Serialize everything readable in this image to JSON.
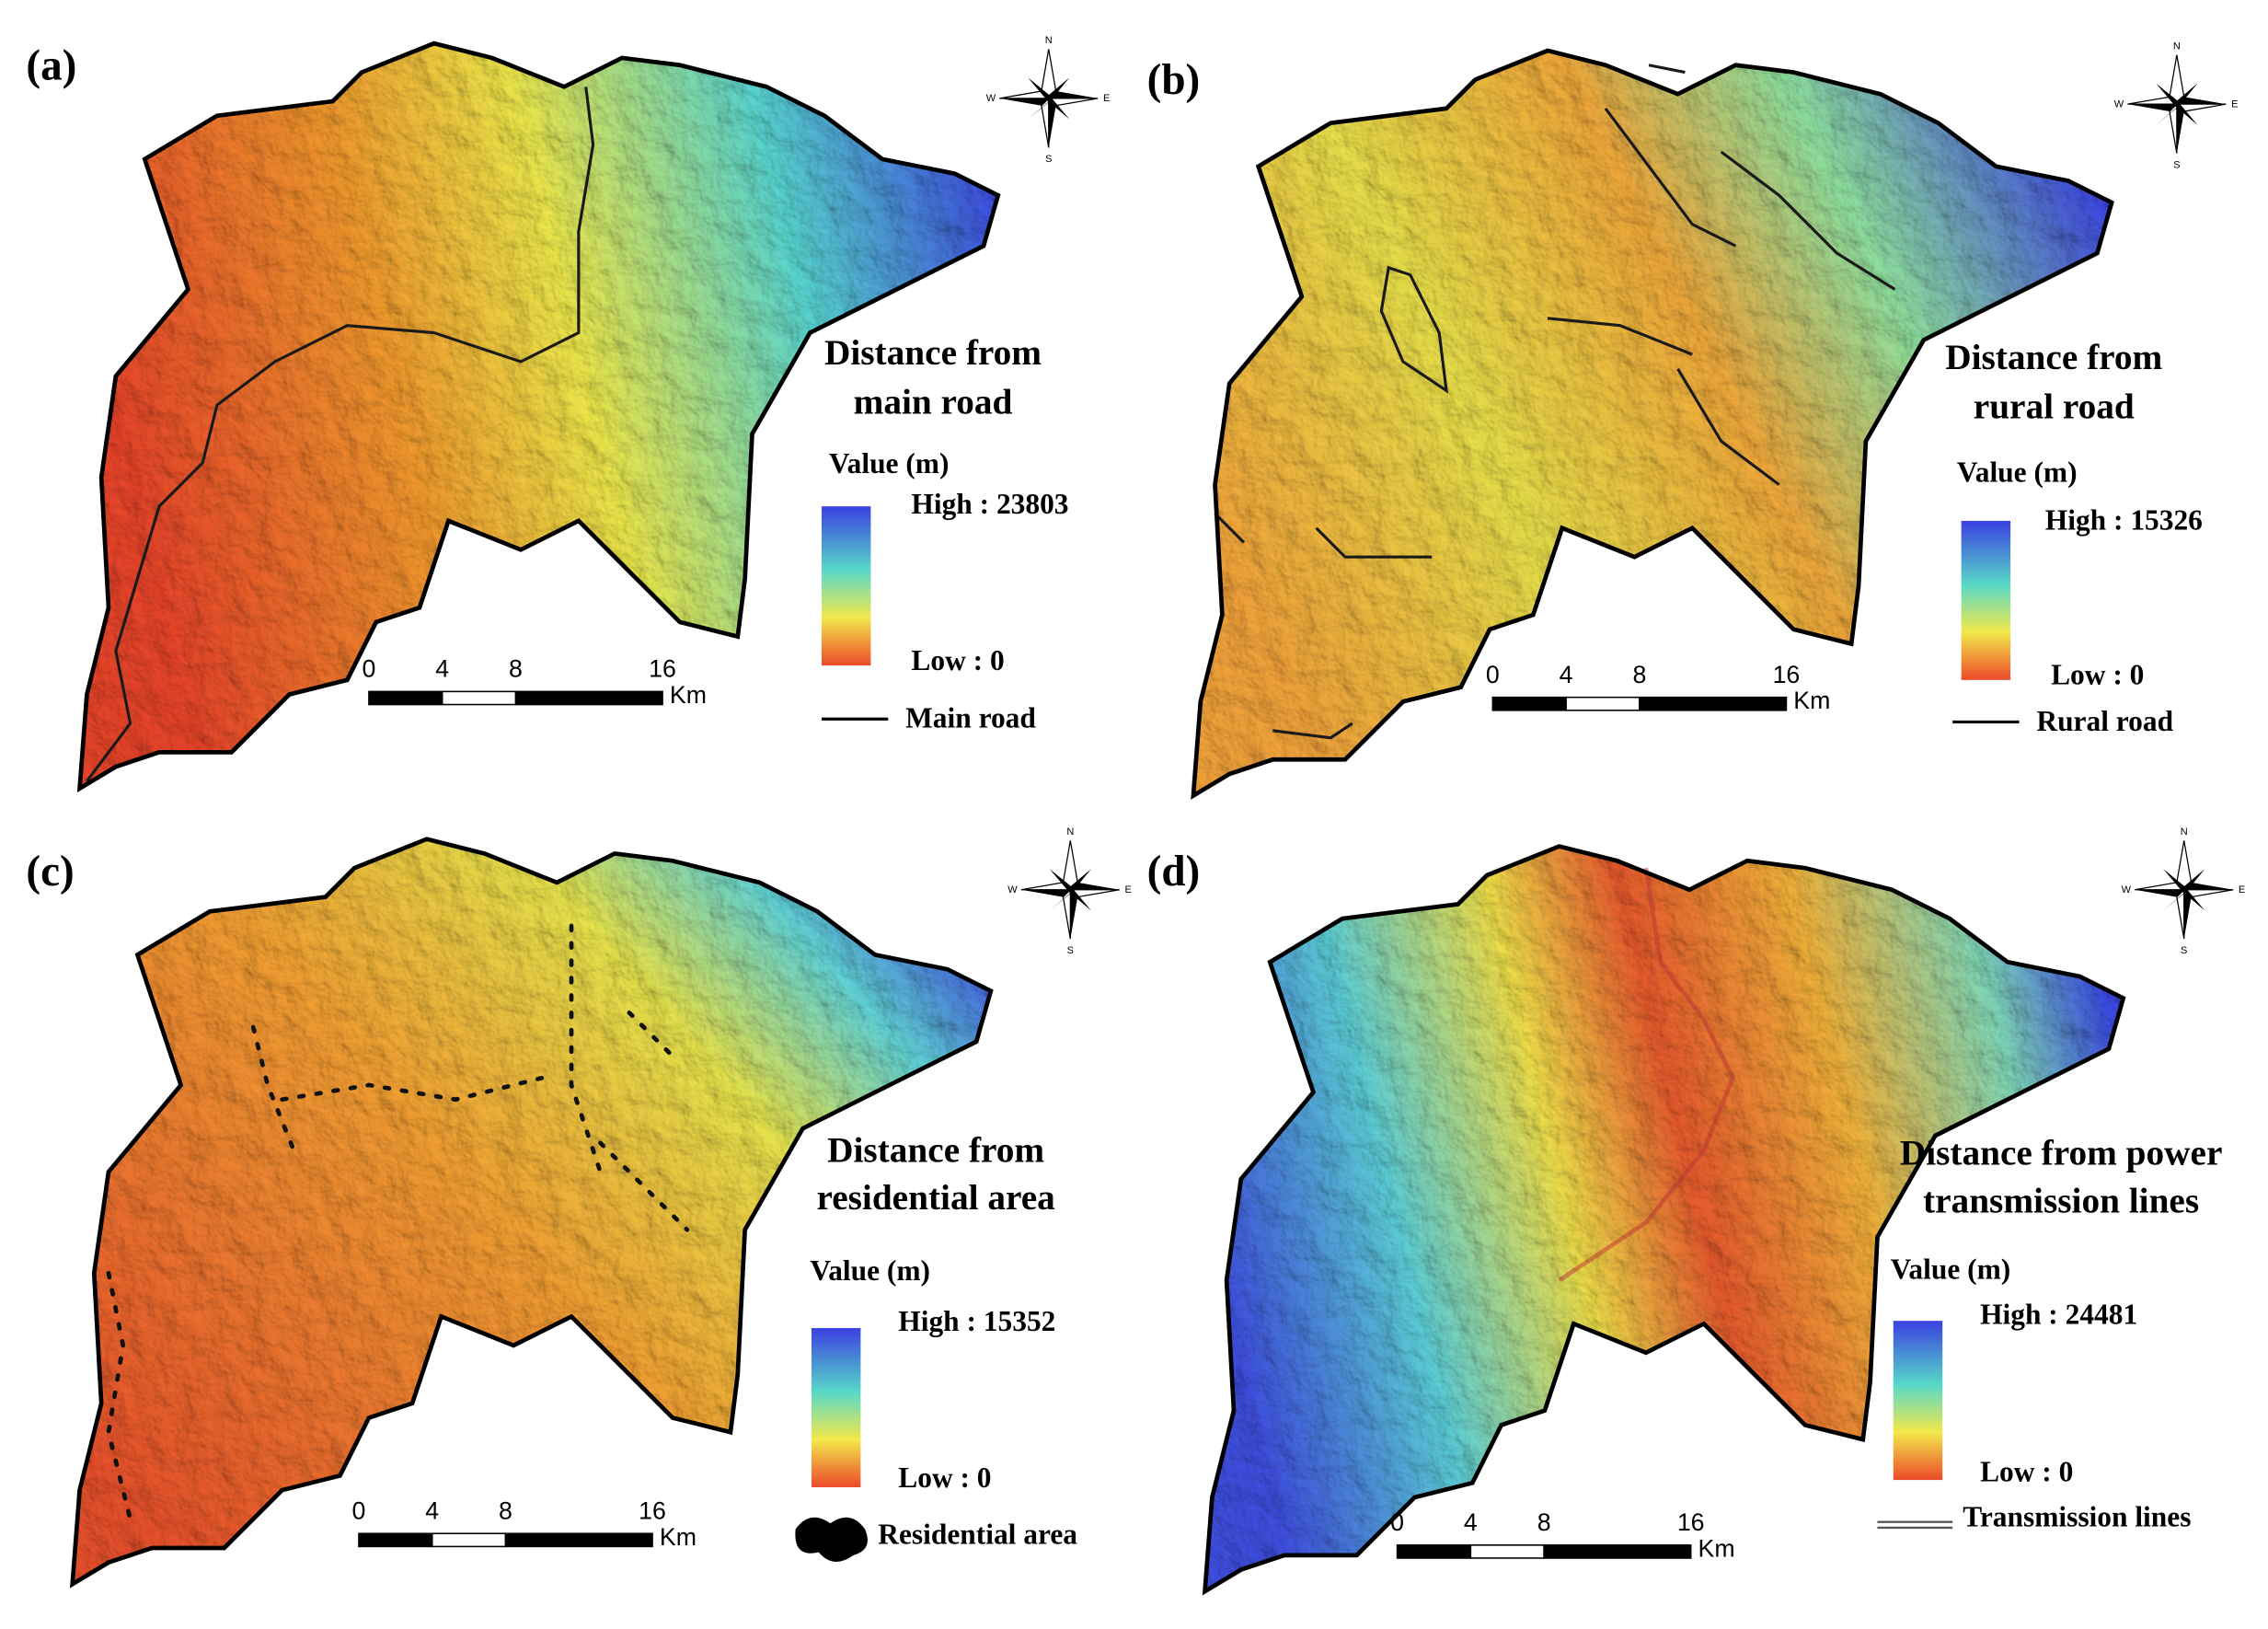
{
  "panels": [
    {
      "label": "(a)",
      "title": [
        "Distance from",
        "main road"
      ],
      "legend_title": "Value (m)",
      "high": "High : 23803",
      "low": "Low : 0",
      "scale_ticks": [
        0,
        4,
        8,
        16
      ],
      "scale_unit": "Km",
      "feature": "Main road",
      "compass": [
        "N",
        "S",
        "W",
        "E"
      ]
    },
    {
      "label": "(b)",
      "title": [
        "Distance from",
        "rural road"
      ],
      "legend_title": "Value (m)",
      "high": "High : 15326",
      "low": "Low : 0",
      "scale_ticks": [
        0,
        4,
        8,
        16
      ],
      "scale_unit": "Km",
      "feature": "Rural road",
      "compass": [
        "N",
        "S",
        "W",
        "E"
      ]
    },
    {
      "label": "(c)",
      "title": [
        "Distance from",
        "residential area"
      ],
      "legend_title": "Value (m)",
      "high": "High : 15352",
      "low": "Low : 0",
      "scale_ticks": [
        0,
        4,
        8,
        16
      ],
      "scale_unit": "Km",
      "feature": "Residential area",
      "compass": [
        "N",
        "S",
        "W",
        "E"
      ]
    },
    {
      "label": "(d)",
      "title": [
        "Distance from power",
        "transmission lines"
      ],
      "legend_title": "Value (m)",
      "high": "High : 24481",
      "low": "Low : 0",
      "scale_ticks": [
        0,
        4,
        8,
        16
      ],
      "scale_unit": "Km",
      "feature": "Transmission lines",
      "compass": [
        "N",
        "S",
        "W",
        "E"
      ]
    }
  ]
}
